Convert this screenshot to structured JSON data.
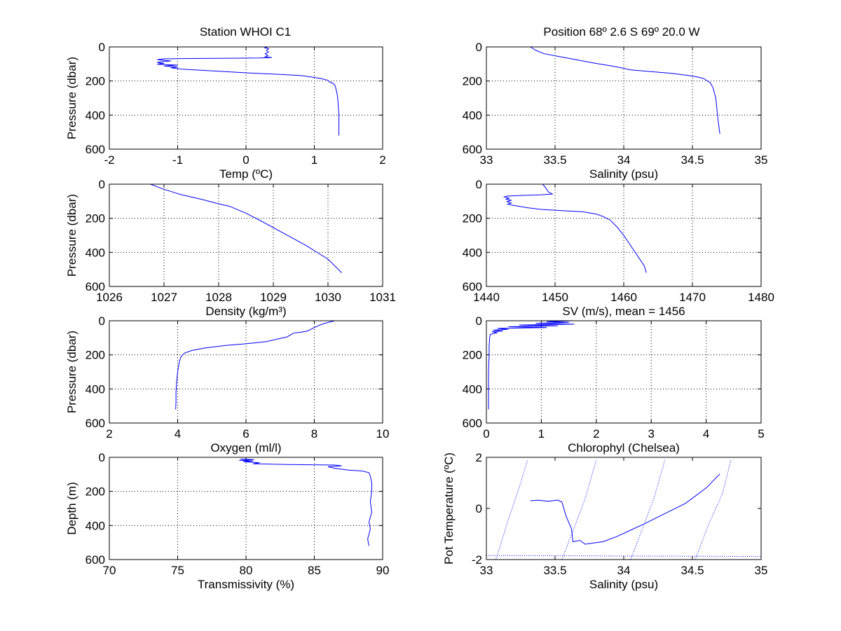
{
  "figure": {
    "title_left": "Station  WHOI C1",
    "title_right": "Position 68º  2.6 S 69º 20.0 W"
  },
  "chart_data": [
    {
      "type": "line",
      "id": "temp",
      "xlabel": "Temp (ºC)",
      "ylabel": "Pressure (dbar)",
      "xlim": [
        -2,
        2
      ],
      "ylim": [
        0,
        600
      ],
      "y_reversed": true,
      "xticks": [
        -2,
        -1,
        0,
        1,
        2
      ],
      "yticks": [
        0,
        200,
        400,
        600
      ],
      "grid": true,
      "series": [
        {
          "color": "#0000ff",
          "points": [
            [
              0.32,
              0
            ],
            [
              0.27,
              5
            ],
            [
              0.33,
              10
            ],
            [
              0.3,
              20
            ],
            [
              0.33,
              30
            ],
            [
              0.28,
              40
            ],
            [
              0.32,
              50
            ],
            [
              0.28,
              58
            ],
            [
              0.38,
              62
            ],
            [
              0.2,
              65
            ],
            [
              -0.2,
              66
            ],
            [
              -0.8,
              68
            ],
            [
              -1.2,
              70
            ],
            [
              -1.3,
              75
            ],
            [
              -1.1,
              82
            ],
            [
              -1.25,
              88
            ],
            [
              -1.3,
              92
            ],
            [
              -1.2,
              97
            ],
            [
              -1.3,
              102
            ],
            [
              -1.0,
              107
            ],
            [
              -1.2,
              112
            ],
            [
              -1.0,
              118
            ],
            [
              -1.1,
              122
            ],
            [
              -0.95,
              130
            ],
            [
              -0.6,
              138
            ],
            [
              -0.3,
              145
            ],
            [
              0.0,
              152
            ],
            [
              0.3,
              158
            ],
            [
              0.6,
              163
            ],
            [
              0.8,
              168
            ],
            [
              0.95,
              176
            ],
            [
              1.1,
              186
            ],
            [
              1.2,
              196
            ],
            [
              1.22,
              205
            ],
            [
              1.28,
              215
            ],
            [
              1.3,
              225
            ],
            [
              1.32,
              250
            ],
            [
              1.34,
              290
            ],
            [
              1.35,
              340
            ],
            [
              1.36,
              400
            ],
            [
              1.36,
              460
            ],
            [
              1.36,
              520
            ]
          ]
        }
      ]
    },
    {
      "type": "line",
      "id": "salinity",
      "xlabel": "Salinity (psu)",
      "ylabel": "",
      "xlim": [
        33,
        35
      ],
      "ylim": [
        0,
        600
      ],
      "y_reversed": true,
      "xticks": [
        33,
        33.5,
        34,
        34.5,
        35
      ],
      "yticks": [
        0,
        200,
        400,
        600
      ],
      "grid": true,
      "series": [
        {
          "color": "#0000ff",
          "points": [
            [
              33.32,
              0
            ],
            [
              33.36,
              20
            ],
            [
              33.42,
              40
            ],
            [
              33.52,
              55
            ],
            [
              33.62,
              70
            ],
            [
              33.72,
              85
            ],
            [
              33.82,
              100
            ],
            [
              33.9,
              110
            ],
            [
              33.98,
              122
            ],
            [
              34.05,
              135
            ],
            [
              34.2,
              145
            ],
            [
              34.35,
              155
            ],
            [
              34.45,
              165
            ],
            [
              34.53,
              175
            ],
            [
              34.58,
              185
            ],
            [
              34.6,
              195
            ],
            [
              34.63,
              210
            ],
            [
              34.65,
              240
            ],
            [
              34.67,
              300
            ],
            [
              34.68,
              380
            ],
            [
              34.69,
              450
            ],
            [
              34.7,
              510
            ]
          ]
        }
      ]
    },
    {
      "type": "line",
      "id": "density",
      "xlabel": "Density (kg/m³)",
      "ylabel": "Pressure (dbar)",
      "xlim": [
        1026,
        1031
      ],
      "ylim": [
        0,
        600
      ],
      "y_reversed": true,
      "xticks": [
        1026,
        1027,
        1028,
        1029,
        1030,
        1031
      ],
      "yticks": [
        0,
        200,
        400,
        600
      ],
      "grid": true,
      "series": [
        {
          "color": "#0000ff",
          "points": [
            [
              1026.75,
              0
            ],
            [
              1027.0,
              30
            ],
            [
              1027.3,
              60
            ],
            [
              1027.7,
              90
            ],
            [
              1028.0,
              115
            ],
            [
              1028.2,
              130
            ],
            [
              1028.5,
              170
            ],
            [
              1028.8,
              220
            ],
            [
              1029.2,
              290
            ],
            [
              1029.6,
              360
            ],
            [
              1030.0,
              440
            ],
            [
              1030.25,
              520
            ]
          ]
        }
      ]
    },
    {
      "type": "line",
      "id": "sound_velocity",
      "xlabel": "SV (m/s), mean = 1456",
      "ylabel": "",
      "xlim": [
        1440,
        1480
      ],
      "ylim": [
        0,
        600
      ],
      "y_reversed": true,
      "xticks": [
        1440,
        1450,
        1460,
        1470,
        1480
      ],
      "yticks": [
        0,
        200,
        400,
        600
      ],
      "grid": true,
      "series": [
        {
          "color": "#0000ff",
          "points": [
            [
              1448.2,
              0
            ],
            [
              1448.5,
              15
            ],
            [
              1448.8,
              30
            ],
            [
              1449.0,
              45
            ],
            [
              1449.6,
              58
            ],
            [
              1448.0,
              62
            ],
            [
              1445.0,
              66
            ],
            [
              1443.0,
              70
            ],
            [
              1442.6,
              75
            ],
            [
              1443.3,
              82
            ],
            [
              1442.9,
              88
            ],
            [
              1443.6,
              95
            ],
            [
              1443.0,
              102
            ],
            [
              1443.6,
              110
            ],
            [
              1443.1,
              117
            ],
            [
              1444.0,
              125
            ],
            [
              1446.0,
              138
            ],
            [
              1448.0,
              148
            ],
            [
              1451.0,
              155
            ],
            [
              1454.0,
              162
            ],
            [
              1456.0,
              175
            ],
            [
              1457.0,
              190
            ],
            [
              1458.0,
              210
            ],
            [
              1459.0,
              250
            ],
            [
              1460.0,
              300
            ],
            [
              1461.0,
              360
            ],
            [
              1462.0,
              420
            ],
            [
              1463.0,
              480
            ],
            [
              1463.3,
              520
            ]
          ]
        }
      ]
    },
    {
      "type": "line",
      "id": "oxygen",
      "xlabel": "Oxygen (ml/l)",
      "ylabel": "Pressure (dbar)",
      "xlim": [
        2,
        10
      ],
      "ylim": [
        0,
        600
      ],
      "y_reversed": true,
      "xticks": [
        2,
        4,
        6,
        8,
        10
      ],
      "yticks": [
        0,
        200,
        400,
        600
      ],
      "grid": true,
      "series": [
        {
          "color": "#0000ff",
          "points": [
            [
              8.6,
              0
            ],
            [
              8.4,
              10
            ],
            [
              8.2,
              22
            ],
            [
              8.0,
              40
            ],
            [
              7.9,
              50
            ],
            [
              7.8,
              60
            ],
            [
              7.6,
              68
            ],
            [
              7.4,
              72
            ],
            [
              7.2,
              95
            ],
            [
              6.6,
              122
            ],
            [
              6.0,
              135
            ],
            [
              5.4,
              145
            ],
            [
              4.8,
              160
            ],
            [
              4.4,
              175
            ],
            [
              4.2,
              190
            ],
            [
              4.1,
              210
            ],
            [
              4.05,
              240
            ],
            [
              4.0,
              300
            ],
            [
              3.97,
              360
            ],
            [
              3.95,
              420
            ],
            [
              3.95,
              480
            ],
            [
              3.94,
              520
            ]
          ]
        }
      ]
    },
    {
      "type": "line",
      "id": "chlorophyl",
      "xlabel": "Chlorophyl (Chelsea)",
      "ylabel": "",
      "xlim": [
        0,
        5
      ],
      "ylim": [
        0,
        600
      ],
      "y_reversed": true,
      "xticks": [
        0,
        1,
        2,
        3,
        4,
        5
      ],
      "yticks": [
        0,
        200,
        400,
        600
      ],
      "grid": true,
      "series": [
        {
          "color": "#0000ff",
          "points": [
            [
              1.6,
              0
            ],
            [
              1.1,
              5
            ],
            [
              1.5,
              10
            ],
            [
              0.9,
              15
            ],
            [
              1.6,
              20
            ],
            [
              0.6,
              25
            ],
            [
              1.3,
              30
            ],
            [
              0.4,
              35
            ],
            [
              1.1,
              40
            ],
            [
              0.2,
              45
            ],
            [
              0.4,
              50
            ],
            [
              0.12,
              55
            ],
            [
              0.3,
              60
            ],
            [
              0.1,
              65
            ],
            [
              0.2,
              70
            ],
            [
              0.07,
              80
            ],
            [
              0.06,
              100
            ],
            [
              0.05,
              150
            ],
            [
              0.05,
              200
            ],
            [
              0.04,
              300
            ],
            [
              0.04,
              400
            ],
            [
              0.04,
              520
            ]
          ]
        }
      ]
    },
    {
      "type": "line",
      "id": "transmissivity",
      "xlabel": "Transmissivity (%)",
      "ylabel": "Depth (m)",
      "xlim": [
        70,
        90
      ],
      "ylim": [
        0,
        600
      ],
      "y_reversed": true,
      "xticks": [
        70,
        75,
        80,
        85,
        90
      ],
      "yticks": [
        0,
        200,
        400,
        600
      ],
      "grid": true,
      "series": [
        {
          "color": "#0000ff",
          "points": [
            [
              79.6,
              10
            ],
            [
              80.6,
              14
            ],
            [
              79.5,
              18
            ],
            [
              80.5,
              22
            ],
            [
              79.8,
              26
            ],
            [
              81.0,
              32
            ],
            [
              80.5,
              38
            ],
            [
              83.0,
              42
            ],
            [
              86.5,
              45
            ],
            [
              87.0,
              50
            ],
            [
              86.0,
              55
            ],
            [
              86.5,
              65
            ],
            [
              87.5,
              75
            ],
            [
              88.5,
              80
            ],
            [
              89.0,
              90
            ],
            [
              89.1,
              110
            ],
            [
              89.2,
              150
            ],
            [
              89.2,
              200
            ],
            [
              89.1,
              260
            ],
            [
              89.2,
              320
            ],
            [
              89.0,
              380
            ],
            [
              89.1,
              420
            ],
            [
              88.9,
              480
            ],
            [
              89.0,
              520
            ]
          ]
        }
      ]
    },
    {
      "type": "line",
      "id": "ts_diagram",
      "xlabel": "Salinity (psu)",
      "ylabel": "Pot Temperature (ºC)",
      "xlim": [
        33,
        35
      ],
      "ylim": [
        -2,
        2
      ],
      "y_reversed": false,
      "xticks": [
        33,
        33.5,
        34,
        34.5,
        35
      ],
      "yticks": [
        -2,
        0,
        2
      ],
      "grid": false,
      "series": [
        {
          "color": "#0000ff",
          "points": [
            [
              33.32,
              0.3
            ],
            [
              33.38,
              0.32
            ],
            [
              33.45,
              0.28
            ],
            [
              33.52,
              0.33
            ],
            [
              33.55,
              0.25
            ],
            [
              33.58,
              -0.3
            ],
            [
              33.62,
              -0.8
            ],
            [
              33.63,
              -1.3
            ],
            [
              33.68,
              -1.25
            ],
            [
              33.72,
              -1.4
            ],
            [
              33.78,
              -1.35
            ],
            [
              33.85,
              -1.3
            ],
            [
              33.95,
              -1.1
            ],
            [
              34.05,
              -0.85
            ],
            [
              34.15,
              -0.6
            ],
            [
              34.3,
              -0.2
            ],
            [
              34.45,
              0.2
            ],
            [
              34.6,
              0.8
            ],
            [
              34.7,
              1.35
            ]
          ]
        },
        {
          "color": "#0000ff",
          "dashed": true,
          "points": [
            [
              33.07,
              -2.0
            ],
            [
              33.15,
              -0.6
            ],
            [
              33.25,
              1.0
            ],
            [
              33.3,
              1.9
            ]
          ]
        },
        {
          "color": "#0000ff",
          "dashed": true,
          "points": [
            [
              33.55,
              -2.0
            ],
            [
              33.65,
              -0.6
            ],
            [
              33.72,
              0.4
            ],
            [
              33.8,
              1.9
            ]
          ]
        },
        {
          "color": "#0000ff",
          "dashed": true,
          "points": [
            [
              34.05,
              -2.0
            ],
            [
              34.15,
              -0.6
            ],
            [
              34.22,
              0.4
            ],
            [
              34.3,
              1.9
            ]
          ]
        },
        {
          "color": "#0000ff",
          "dashed": true,
          "points": [
            [
              34.52,
              -2.0
            ],
            [
              34.62,
              -0.6
            ],
            [
              34.72,
              0.6
            ],
            [
              34.78,
              1.9
            ]
          ]
        },
        {
          "color": "#0000ff",
          "dashed": true,
          "points": [
            [
              33.0,
              -1.84
            ],
            [
              34.0,
              -1.86
            ],
            [
              35.0,
              -1.88
            ]
          ]
        }
      ]
    }
  ]
}
